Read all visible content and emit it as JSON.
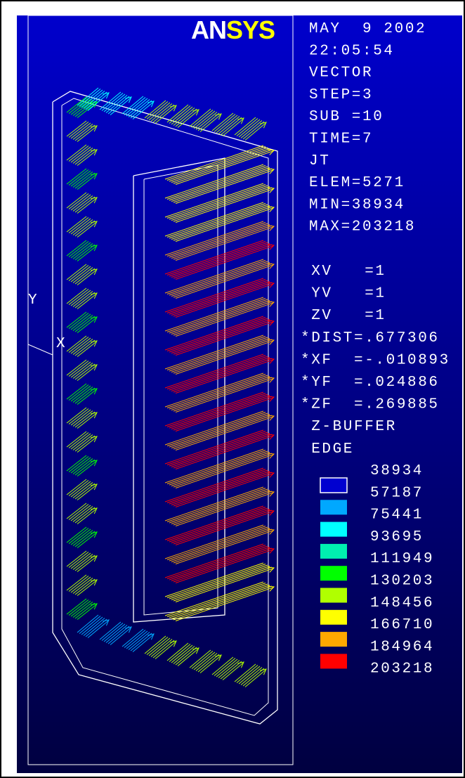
{
  "logo": {
    "part1": "AN",
    "part2": "SYS"
  },
  "info": [
    "MAY  9 2002",
    "22:05:54",
    "VECTOR",
    "STEP=3",
    "SUB =10",
    "TIME=7",
    "JT",
    "ELEM=5271",
    "MIN=38934",
    "MAX=203218"
  ],
  "view": [
    " XV   =1",
    " YV   =1",
    " ZV   =1",
    "*DIST=.677306",
    "*XF  =-.010893",
    "*YF  =.024886",
    "*ZF  =.269885",
    " Z-BUFFER",
    " EDGE"
  ],
  "triad": {
    "y": "Y",
    "x": "X"
  },
  "legend": {
    "labels": [
      "38934",
      "57187",
      "75441",
      "93695",
      "111949",
      "130203",
      "148456",
      "166710",
      "184964",
      "203218"
    ],
    "colors": [
      "#0000d0",
      "#00a8ff",
      "#00ffff",
      "#00f0b0",
      "#00ff00",
      "#b0ff00",
      "#ffff00",
      "#ffa800",
      "#ff0000"
    ]
  }
}
